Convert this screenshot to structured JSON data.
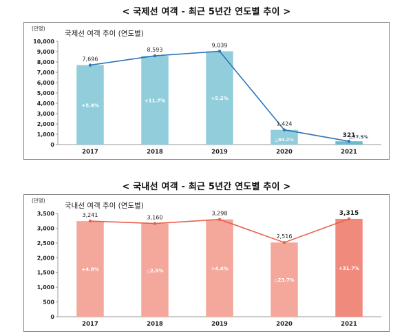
{
  "titles": {
    "international": "< 국제선 여객 - 최근 5년간 연도별 추이 >",
    "domestic": "< 국내선 여객 - 최근 5년간 연도별 추이 >"
  },
  "chart_data": [
    {
      "type": "bar",
      "title": "국제선 여객 추이 (연도별)",
      "unit": "(만명)",
      "categories": [
        "2017",
        "2018",
        "2019",
        "2020",
        "2021"
      ],
      "values": [
        7696,
        8593,
        9039,
        1424,
        321
      ],
      "value_labels": [
        "7,696",
        "8,593",
        "9,039",
        "1,424",
        "321"
      ],
      "change_labels": [
        "+5.4%",
        "+11.7%",
        "+5.2%",
        "△84.2%",
        "△77.5%"
      ],
      "ylim": [
        0,
        10000
      ],
      "yticks": [
        0,
        1000,
        2000,
        3000,
        4000,
        5000,
        6000,
        7000,
        8000,
        9000,
        10000
      ],
      "ytick_labels": [
        "0",
        "1,000",
        "2,000",
        "3,000",
        "4,000",
        "5,000",
        "6,000",
        "7,000",
        "8,000",
        "9,000",
        "10,000"
      ],
      "overlay_line": true,
      "grid": false,
      "colors": {
        "bar": "#92CDDC",
        "bar_last": "#6BBBD0",
        "line": "#2E75B6",
        "change_text": "#ffffff",
        "change_text_small": "#1F3864"
      }
    },
    {
      "type": "bar",
      "title": "국내선 여객 추이 (연도별)",
      "unit": "(만명)",
      "categories": [
        "2017",
        "2018",
        "2019",
        "2020",
        "2021"
      ],
      "values": [
        3241,
        3160,
        3298,
        2516,
        3315
      ],
      "value_labels": [
        "3,241",
        "3,160",
        "3,298",
        "2,516",
        "3,315"
      ],
      "change_labels": [
        "+4.8%",
        "△2.5%",
        "+4.4%",
        "△23.7%",
        "+31.7%"
      ],
      "ylim": [
        0,
        3500
      ],
      "yticks": [
        0,
        500,
        1000,
        1500,
        2000,
        2500,
        3000,
        3500
      ],
      "ytick_labels": [
        "0",
        "500",
        "1,000",
        "1,500",
        "2,000",
        "2,500",
        "3,000",
        "3,500"
      ],
      "overlay_line": true,
      "grid": false,
      "colors": {
        "bar": "#F4A79B",
        "bar_last": "#F08A7C",
        "line": "#E8604C",
        "change_text": "#ffffff"
      }
    }
  ]
}
